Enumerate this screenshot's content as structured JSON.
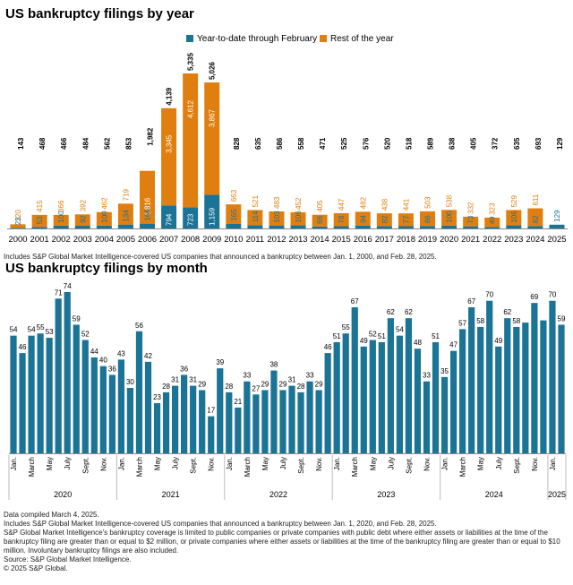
{
  "colors": {
    "ytd": "#1b7495",
    "rest": "#e07f10",
    "axis": "#888888",
    "text": "#000000"
  },
  "chart_data": [
    {
      "type": "bar",
      "title": "US bankruptcy filings by year",
      "legend": [
        "Year-to-date through February",
        "Rest of the year"
      ],
      "legend_position": "top-right",
      "categories": [
        "2000",
        "2001",
        "2002",
        "2003",
        "2004",
        "2005",
        "2006",
        "2007",
        "2008",
        "2009",
        "2010",
        "2011",
        "2012",
        "2013",
        "2014",
        "2015",
        "2016",
        "2017",
        "2018",
        "2019",
        "2020",
        "2021",
        "2022",
        "2023",
        "2024",
        "2025"
      ],
      "series": [
        {
          "name": "Year-to-date through February",
          "values": [
            23,
            53,
            100,
            92,
            100,
            134,
            166,
            794,
            723,
            1159,
            165,
            114,
            103,
            106,
            66,
            78,
            94,
            82,
            77,
            86,
            100,
            73,
            49,
            106,
            82,
            129
          ]
        },
        {
          "name": "Rest of the year",
          "values": [
            120,
            415,
            366,
            392,
            462,
            719,
            1816,
            3345,
            4612,
            3867,
            663,
            521,
            483,
            452,
            405,
            447,
            482,
            438,
            441,
            503,
            538,
            332,
            323,
            529,
            611,
            null
          ]
        }
      ],
      "totals": [
        143,
        468,
        466,
        484,
        562,
        853,
        1982,
        4139,
        5335,
        5026,
        828,
        635,
        586,
        558,
        471,
        525,
        576,
        520,
        518,
        589,
        638,
        405,
        372,
        635,
        693,
        129
      ],
      "ylim": [
        0,
        5600
      ]
    },
    {
      "type": "bar",
      "title": "US bankruptcy filings by month",
      "values": [
        54,
        46,
        54,
        55,
        53,
        71,
        74,
        59,
        52,
        44,
        40,
        36,
        43,
        30,
        56,
        42,
        23,
        28,
        31,
        36,
        31,
        29,
        17,
        39,
        28,
        21,
        33,
        27,
        29,
        38,
        29,
        31,
        28,
        33,
        29,
        46,
        51,
        55,
        67,
        49,
        52,
        51,
        62,
        54,
        62,
        48,
        33,
        51,
        35,
        47,
        57,
        67,
        58,
        70,
        49,
        62,
        58,
        60,
        69,
        61,
        70,
        59
      ],
      "labeled_indices": [
        0,
        1,
        2,
        3,
        4,
        5,
        6,
        7,
        8,
        9,
        10,
        11,
        12,
        13,
        14,
        15,
        16,
        17,
        18,
        19,
        20,
        21,
        22,
        23,
        24,
        25,
        26,
        27,
        28,
        29,
        30,
        31,
        32,
        33,
        34,
        35,
        36,
        37,
        38,
        39,
        40,
        41,
        42,
        43,
        44,
        45,
        46,
        47,
        48,
        49,
        50,
        51,
        52,
        53,
        54,
        55,
        56,
        57,
        58,
        59,
        60,
        61
      ],
      "hidden_label_indices": [
        57,
        59
      ],
      "month_ticks": [
        "Jan.",
        "March",
        "May",
        "July",
        "Sept.",
        "Nov."
      ],
      "years": [
        "2020",
        "2021",
        "2022",
        "2023",
        "2024",
        "2025"
      ],
      "ylim": [
        0,
        80
      ]
    }
  ],
  "notes": {
    "chart1_note": "Includes S&P Global Market Intelligence-covered US companies that announced a bankruptcy between Jan. 1, 2000, and Feb. 28, 2025.",
    "footer": [
      "Data compiled March 4, 2025.",
      "Includes S&P Global Market Intelligence-covered US companies that announced a bankruptcy between Jan. 1, 2020, and Feb. 28, 2025.",
      "S&P Global Market Intelligence's bankruptcy coverage is limited to public companies or private companies with public debt where either assets or liabilities at the time of the bankruptcy filing are greater than or equal to $2 million, or private companies where either assets or liabilities at the time of the bankruptcy filing are greater than or equal to $10 million. Involuntary bankruptcy filings are also included.",
      "Source: S&P Global Market Intelligence.",
      "© 2025 S&P Global."
    ]
  }
}
